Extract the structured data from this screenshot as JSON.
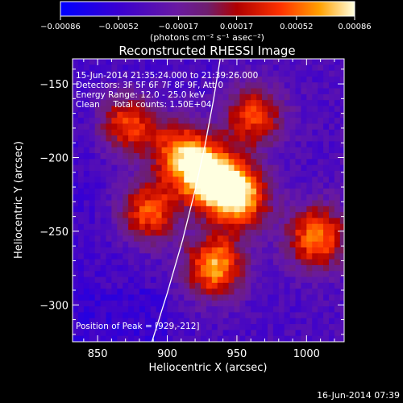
{
  "chart_data": {
    "type": "heatmap",
    "title": "Reconstructed RHESSI Image",
    "xlabel": "Heliocentric X (arcsec)",
    "ylabel": "Heliocentric Y (arcsec)",
    "xlim": [
      832,
      1027
    ],
    "ylim": [
      -325,
      -133
    ],
    "x_ticks": [
      {
        "value": 850,
        "label": "850"
      },
      {
        "value": 900,
        "label": "900"
      },
      {
        "value": 950,
        "label": "950"
      },
      {
        "value": 1000,
        "label": "1000"
      }
    ],
    "y_ticks": [
      {
        "value": -150,
        "label": "−150"
      },
      {
        "value": -200,
        "label": "−200"
      },
      {
        "value": -250,
        "label": "−250"
      },
      {
        "value": -300,
        "label": "−300"
      }
    ],
    "colorbar": {
      "range": [
        -0.00086,
        0.00086
      ],
      "ticks": [
        {
          "value": -0.00086,
          "label": "−0.00086"
        },
        {
          "value": -0.00052,
          "label": "−0.00052"
        },
        {
          "value": -0.00017,
          "label": "−0.00017"
        },
        {
          "value": 0.00017,
          "label": "0.00017"
        },
        {
          "value": 0.00052,
          "label": "0.00052"
        },
        {
          "value": 0.00086,
          "label": "0.00086"
        }
      ],
      "label": "(photons cm⁻² s⁻¹ asec⁻²)"
    },
    "info": {
      "time_range": "15-Jun-2014 21:35:24.000 to 21:39:26.000",
      "detectors": "Detectors: 3F 5F 6F 7F 8F 9F, Att 0",
      "energy_range": "Energy Range: 12.0 - 25.0 keV",
      "method_counts": "Clean     Total counts: 1.50E+04",
      "peak": "Position of Peak = [929,-212]"
    },
    "sources": [
      {
        "x": 929,
        "y": -212,
        "intensity": 0.00086
      },
      {
        "x": 950,
        "y": -225,
        "intensity": 0.00072
      },
      {
        "x": 932,
        "y": -272,
        "intensity": 0.00068
      },
      {
        "x": 908,
        "y": -195,
        "intensity": 0.00055
      },
      {
        "x": 885,
        "y": -235,
        "intensity": 0.00048
      },
      {
        "x": 870,
        "y": -175,
        "intensity": 0.00042
      },
      {
        "x": 1005,
        "y": -252,
        "intensity": 0.00055
      },
      {
        "x": 960,
        "y": -170,
        "intensity": 0.0004
      }
    ],
    "limb_curve": [
      {
        "x": 889,
        "y": -325
      },
      {
        "x": 900,
        "y": -292
      },
      {
        "x": 911,
        "y": -256
      },
      {
        "x": 920,
        "y": -222
      },
      {
        "x": 927,
        "y": -192
      },
      {
        "x": 933,
        "y": -162
      },
      {
        "x": 938,
        "y": -133
      }
    ],
    "colors": {
      "background": "#000000",
      "text": "#ffffff",
      "limb": "#ffffff"
    }
  },
  "footer": {
    "date": "16-Jun-2014 07:39"
  }
}
